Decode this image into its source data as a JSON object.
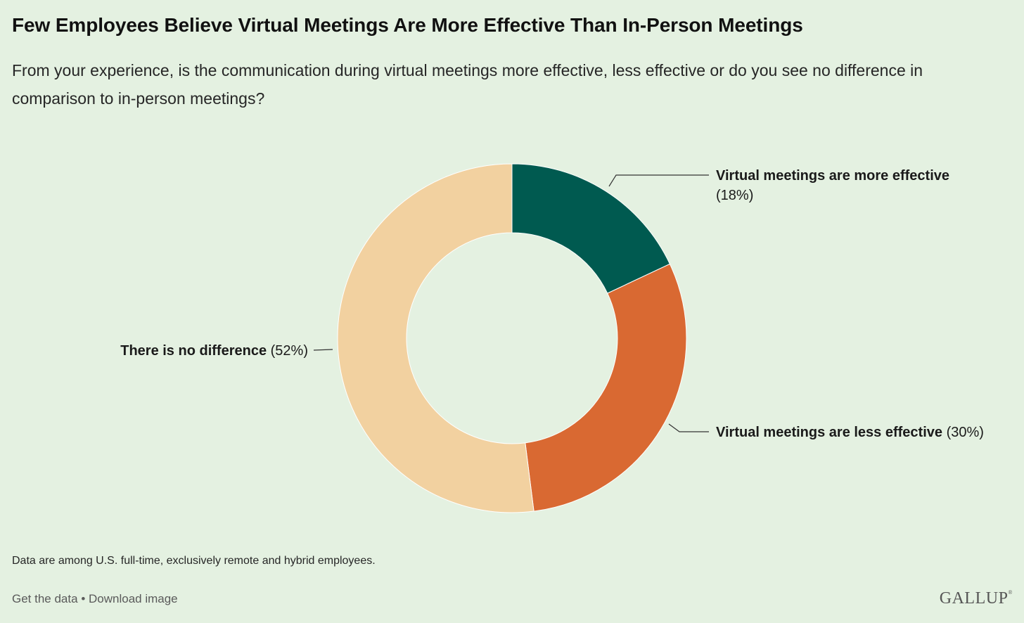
{
  "title": "Few Employees Believe Virtual Meetings Are More Effective Than In-Person Meetings",
  "subtitle": "From your experience, is the communication during virtual meetings more effective, less effective or do you see no difference in comparison to in-person meetings?",
  "note": "Data are among U.S. full-time, exclusively remote and hybrid employees.",
  "footer": {
    "get_data": "Get the data",
    "separator": "•",
    "download": "Download image",
    "logo": "GALLUP",
    "logo_mark": "®"
  },
  "chart_data": {
    "type": "pie",
    "donut": true,
    "slices": [
      {
        "label": "Virtual meetings are more effective",
        "value": 18,
        "value_label": "(18%)",
        "color": "#005a50"
      },
      {
        "label": "Virtual meetings are less effective",
        "value": 30,
        "value_label": "(30%)",
        "color": "#d96932"
      },
      {
        "label": "There is no difference",
        "value": 52,
        "value_label": "(52%)",
        "color": "#f2d1a0"
      }
    ]
  },
  "colors": {
    "background": "#e4f1e1"
  }
}
